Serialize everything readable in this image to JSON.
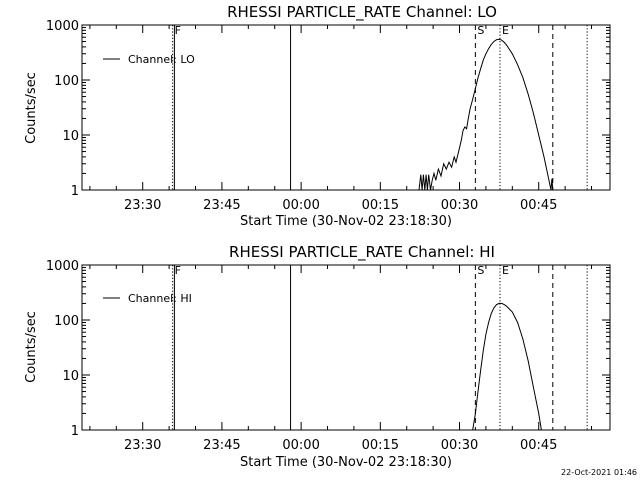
{
  "footer": {
    "timestamp": "22-Oct-2021 01:46"
  },
  "chart_data": [
    {
      "type": "line",
      "title": "RHESSI PARTICLE_RATE Channel: LO",
      "xlabel": "Start Time (30-Nov-02 23:18:30)",
      "ylabel": "Counts/sec",
      "yscale": "log",
      "xlim": [
        "23:18:30",
        "00:58:30"
      ],
      "ylim": [
        1,
        1000
      ],
      "x_ticks": [
        "23:30",
        "23:45",
        "00:00",
        "00:15",
        "00:30",
        "00:45"
      ],
      "y_ticks": [
        "1",
        "10",
        "100",
        "1000"
      ],
      "legend": {
        "entries": [
          "Channel: LO"
        ],
        "position": "top-left"
      },
      "grid": false,
      "markers": [
        {
          "time": "23:35:40",
          "style": "dotted",
          "label": "F"
        },
        {
          "time": "23:36:00",
          "style": "solid",
          "label": ""
        },
        {
          "time": "23:58:00",
          "style": "solid",
          "label": ""
        },
        {
          "time": "00:33:00",
          "style": "dashed",
          "label": "S"
        },
        {
          "time": "00:37:40",
          "style": "dotted",
          "label": "E"
        },
        {
          "time": "00:47:40",
          "style": "dashed",
          "label": ""
        },
        {
          "time": "00:54:10",
          "style": "dotted",
          "label": ""
        }
      ],
      "series": [
        {
          "values": [
            [
              "00:22:20",
              1.0
            ],
            [
              "00:22:40",
              1.9
            ],
            [
              "00:22:55",
              1.0
            ],
            [
              "00:23:10",
              1.9
            ],
            [
              "00:23:25",
              1.0
            ],
            [
              "00:23:40",
              1.9
            ],
            [
              "00:23:55",
              1.0
            ],
            [
              "00:24:10",
              1.9
            ],
            [
              "00:24:30",
              1.0
            ],
            [
              "00:24:50",
              1.5
            ],
            [
              "00:25:10",
              2.0
            ],
            [
              "00:25:30",
              1.5
            ],
            [
              "00:26:00",
              2.4
            ],
            [
              "00:26:30",
              1.8
            ],
            [
              "00:27:00",
              3.0
            ],
            [
              "00:27:30",
              2.4
            ],
            [
              "00:28:00",
              3.2
            ],
            [
              "00:28:30",
              2.6
            ],
            [
              "00:29:00",
              4.0
            ],
            [
              "00:29:20",
              3.2
            ],
            [
              "00:29:50",
              5.0
            ],
            [
              "00:30:20",
              8.0
            ],
            [
              "00:30:40",
              12
            ],
            [
              "00:31:00",
              14
            ],
            [
              "00:31:20",
              13
            ],
            [
              "00:31:40",
              20
            ],
            [
              "00:32:00",
              30
            ],
            [
              "00:32:30",
              45
            ],
            [
              "00:33:00",
              70
            ],
            [
              "00:33:30",
              110
            ],
            [
              "00:34:00",
              160
            ],
            [
              "00:34:30",
              230
            ],
            [
              "00:35:00",
              300
            ],
            [
              "00:35:30",
              370
            ],
            [
              "00:36:00",
              440
            ],
            [
              "00:36:30",
              500
            ],
            [
              "00:37:00",
              540
            ],
            [
              "00:37:30",
              550
            ],
            [
              "00:38:00",
              530
            ],
            [
              "00:38:30",
              480
            ],
            [
              "00:39:00",
              420
            ],
            [
              "00:40:00",
              300
            ],
            [
              "00:41:00",
              190
            ],
            [
              "00:42:00",
              110
            ],
            [
              "00:43:00",
              55
            ],
            [
              "00:44:00",
              25
            ],
            [
              "00:45:00",
              10
            ],
            [
              "00:46:00",
              4.0
            ],
            [
              "00:46:40",
              2.0
            ],
            [
              "00:47:00",
              1.4
            ],
            [
              "00:47:20",
              1.0
            ],
            [
              "00:47:30",
              1.6
            ],
            [
              "00:47:40",
              1.0
            ]
          ]
        }
      ]
    },
    {
      "type": "line",
      "title": "RHESSI PARTICLE_RATE Channel: HI",
      "xlabel": "Start Time (30-Nov-02 23:18:30)",
      "ylabel": "Counts/sec",
      "yscale": "log",
      "xlim": [
        "23:18:30",
        "00:58:30"
      ],
      "ylim": [
        1,
        1000
      ],
      "x_ticks": [
        "23:30",
        "23:45",
        "00:00",
        "00:15",
        "00:30",
        "00:45"
      ],
      "y_ticks": [
        "1",
        "10",
        "100",
        "1000"
      ],
      "legend": {
        "entries": [
          "Channel: HI"
        ],
        "position": "top-left"
      },
      "grid": false,
      "markers": [
        {
          "time": "23:35:40",
          "style": "dotted",
          "label": "F"
        },
        {
          "time": "23:36:00",
          "style": "solid",
          "label": ""
        },
        {
          "time": "23:58:00",
          "style": "solid",
          "label": ""
        },
        {
          "time": "00:33:00",
          "style": "dashed",
          "label": "S"
        },
        {
          "time": "00:37:40",
          "style": "dotted",
          "label": "E"
        },
        {
          "time": "00:47:40",
          "style": "dashed",
          "label": ""
        },
        {
          "time": "00:54:10",
          "style": "dotted",
          "label": ""
        }
      ],
      "series": [
        {
          "values": [
            [
              "00:32:30",
              1.0
            ],
            [
              "00:33:00",
              2.0
            ],
            [
              "00:33:30",
              5.0
            ],
            [
              "00:34:00",
              12
            ],
            [
              "00:34:30",
              28
            ],
            [
              "00:35:00",
              55
            ],
            [
              "00:35:30",
              90
            ],
            [
              "00:36:00",
              130
            ],
            [
              "00:36:30",
              165
            ],
            [
              "00:37:00",
              190
            ],
            [
              "00:37:30",
              200
            ],
            [
              "00:38:00",
              200
            ],
            [
              "00:38:30",
              190
            ],
            [
              "00:39:00",
              175
            ],
            [
              "00:40:00",
              140
            ],
            [
              "00:41:00",
              90
            ],
            [
              "00:42:00",
              45
            ],
            [
              "00:43:00",
              18
            ],
            [
              "00:44:00",
              6.0
            ],
            [
              "00:45:00",
              2.0
            ],
            [
              "00:45:30",
              1.0
            ]
          ]
        }
      ]
    }
  ]
}
